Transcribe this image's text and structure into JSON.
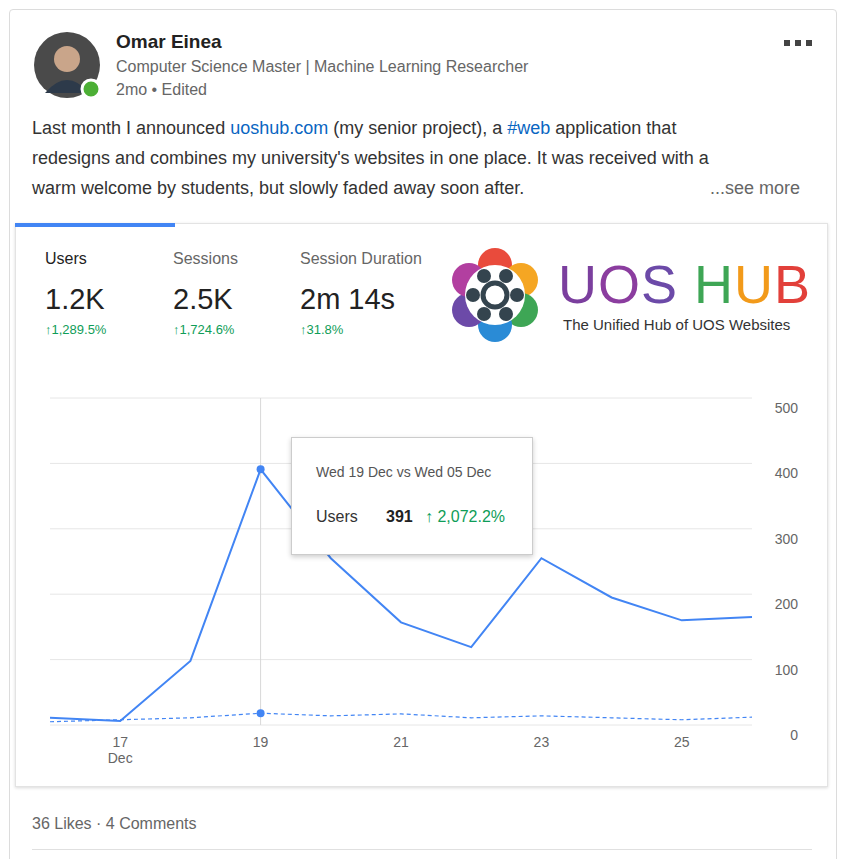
{
  "post": {
    "author": "Omar Einea",
    "headline": "Computer Science Master | Machine Learning Researcher",
    "meta": "2mo • Edited",
    "lines": [
      [
        {
          "text": "Last month I announced "
        },
        {
          "text": "uoshub.com",
          "link": true
        },
        {
          "text": " (my senior project), a "
        },
        {
          "text": "#web",
          "link": true
        },
        {
          "text": " application that"
        }
      ],
      [
        {
          "text": "redesigns and combines my university's websites in one place. It was received with a"
        }
      ],
      [
        {
          "text": "warm welcome by students, but slowly faded away soon after."
        }
      ]
    ],
    "see_more": "...see more",
    "footer": "36 Likes · 4 Comments"
  },
  "summary": {
    "metrics": [
      {
        "label": "Users",
        "value": "1.2K",
        "change": "↑1,289.5%"
      },
      {
        "label": "Sessions",
        "value": "2.5K",
        "change": "↑1,724.6%"
      },
      {
        "label": "Session Duration",
        "value": "2m 14s",
        "change": "↑31.8%"
      }
    ]
  },
  "logo": {
    "title": "UOS HUB",
    "subtitle": "The Unified Hub of UOS Websites"
  },
  "tooltip": {
    "category": "19",
    "title": "Wed 19 Dec vs Wed 05 Dec",
    "label": "Users",
    "value": 391,
    "change": "↑ 2,072.2%"
  },
  "chart_data": {
    "type": "line",
    "categories": [
      null,
      "17 Dec",
      null,
      "19",
      null,
      "21",
      null,
      "23",
      null,
      "25",
      null
    ],
    "series": [
      {
        "color": "#4285f4",
        "line_style": "solid",
        "values": [
          11,
          6,
          98,
          391,
          255,
          157,
          119,
          255,
          195,
          160,
          165
        ]
      },
      {
        "color": "#4285f4",
        "line_style": "dashed",
        "values": [
          5,
          8,
          11,
          18,
          14,
          17,
          11,
          14,
          11,
          8,
          12
        ]
      }
    ],
    "ylim": [
      0,
      500
    ],
    "yticks": [
      0,
      100,
      200,
      300,
      400,
      500
    ],
    "grid": true
  }
}
